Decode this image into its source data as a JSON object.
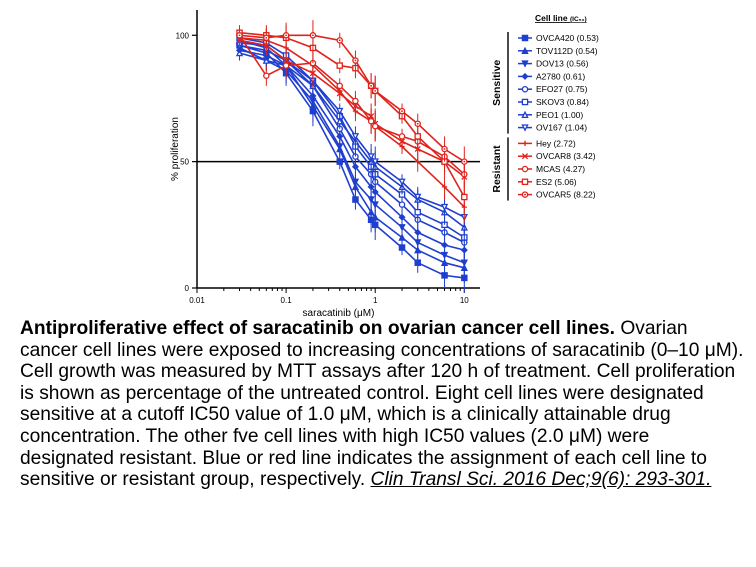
{
  "chart_data": {
    "type": "line",
    "xscale": "log",
    "xlim": [
      0.01,
      15
    ],
    "ylim": [
      0,
      110
    ],
    "xticks": [
      0.01,
      0.1,
      1,
      10
    ],
    "xtick_labels": [
      "0.01",
      "0.1",
      "1",
      "10"
    ],
    "yticks": [
      0,
      50,
      100
    ],
    "ytick_labels": [
      "0",
      "50",
      "100"
    ],
    "xlabel": "saracatinib (μM)",
    "ylabel": "% proliferation",
    "reference_line_y": 50,
    "grid": false,
    "legend_position": "right",
    "legend_title": "Cell line",
    "legend_title_sub": "(IC₅₀)",
    "group_labels": [
      "Sensitive",
      "Resistant"
    ],
    "x": [
      0.03,
      0.06,
      0.1,
      0.2,
      0.4,
      0.6,
      0.9,
      1.0,
      2.0,
      3.0,
      6.0,
      10.0
    ],
    "colors": {
      "sensitive": "#1f3fcf",
      "resistant": "#e0231c"
    },
    "series": [
      {
        "name": "OVCA420 (0.53)",
        "group": "sensitive",
        "marker": "square",
        "values": [
          96,
          93,
          85,
          70,
          50,
          35,
          27,
          25,
          16,
          10,
          5,
          4
        ]
      },
      {
        "name": "TOV112D (0.54)",
        "group": "sensitive",
        "marker": "triangle-up",
        "values": [
          98,
          95,
          88,
          72,
          55,
          40,
          30,
          28,
          20,
          15,
          10,
          8
        ]
      },
      {
        "name": "DOV13 (0.56)",
        "group": "sensitive",
        "marker": "triangle-down",
        "values": [
          95,
          90,
          86,
          74,
          56,
          42,
          35,
          33,
          24,
          18,
          13,
          10
        ]
      },
      {
        "name": "A2780 (0.61)",
        "group": "sensitive",
        "marker": "diamond",
        "values": [
          94,
          92,
          88,
          76,
          60,
          48,
          40,
          38,
          28,
          22,
          17,
          15
        ]
      },
      {
        "name": "EFO27 (0.75)",
        "group": "sensitive",
        "marker": "circle-open",
        "values": [
          97,
          96,
          90,
          80,
          63,
          52,
          45,
          42,
          33,
          27,
          22,
          18
        ]
      },
      {
        "name": "SKOV3 (0.84)",
        "group": "sensitive",
        "marker": "square-open",
        "values": [
          99,
          97,
          92,
          82,
          68,
          56,
          48,
          45,
          37,
          30,
          25,
          20
        ]
      },
      {
        "name": "PEO1 (1.00)",
        "group": "sensitive",
        "marker": "triangle-up-open",
        "values": [
          93,
          90,
          88,
          80,
          66,
          58,
          50,
          48,
          40,
          35,
          30,
          24
        ]
      },
      {
        "name": "OV167 (1.04)",
        "group": "sensitive",
        "marker": "triangle-down-open",
        "values": [
          96,
          94,
          90,
          82,
          70,
          60,
          52,
          50,
          42,
          36,
          32,
          28
        ]
      },
      {
        "name": "Hey (2.72)",
        "group": "resistant",
        "marker": "plus",
        "values": [
          99,
          98,
          95,
          88,
          78,
          70,
          66,
          64,
          56,
          50,
          40,
          32
        ]
      },
      {
        "name": "OVCAR8 (3.42)",
        "group": "resistant",
        "marker": "x",
        "values": [
          98,
          96,
          90,
          85,
          77,
          72,
          68,
          65,
          58,
          55,
          50,
          44
        ]
      },
      {
        "name": "MCAS (4.27)",
        "group": "resistant",
        "marker": "circle-open",
        "values": [
          100,
          84,
          88,
          89,
          80,
          74,
          66,
          64,
          60,
          58,
          52,
          45
        ]
      },
      {
        "name": "ES2 (5.06)",
        "group": "resistant",
        "marker": "square-open",
        "values": [
          101,
          100,
          99,
          95,
          88,
          87,
          80,
          78,
          68,
          60,
          50,
          36
        ]
      },
      {
        "name": "OVCAR5 (8.22)",
        "group": "resistant",
        "marker": "circle-dot",
        "values": [
          100,
          99,
          100,
          100,
          98,
          90,
          80,
          78,
          70,
          65,
          55,
          50
        ]
      }
    ]
  },
  "caption": {
    "title": "Antiproliferative effect of saracatinib on ovarian cancer cell lines.",
    "body": " Ovarian cancer cell lines were exposed to increasing concentrations of saracatinib (0–10 μM). Cell growth was measured by MTT assays after 120 h of treatment. Cell proliferation is shown as percentage of the untreated control. Eight cell lines were designated sensitive at a cutoff IC50 value of 1.0 μM, which is a clinically attainable drug concentration. The other fve cell lines with high IC50 values (2.0 μM) were designated resistant. Blue or red line indicates the assignment of each cell line to sensitive or resistant group, respectively. ",
    "citation": "Clin Transl Sci. 2016 Dec;9(6): 293-301."
  }
}
